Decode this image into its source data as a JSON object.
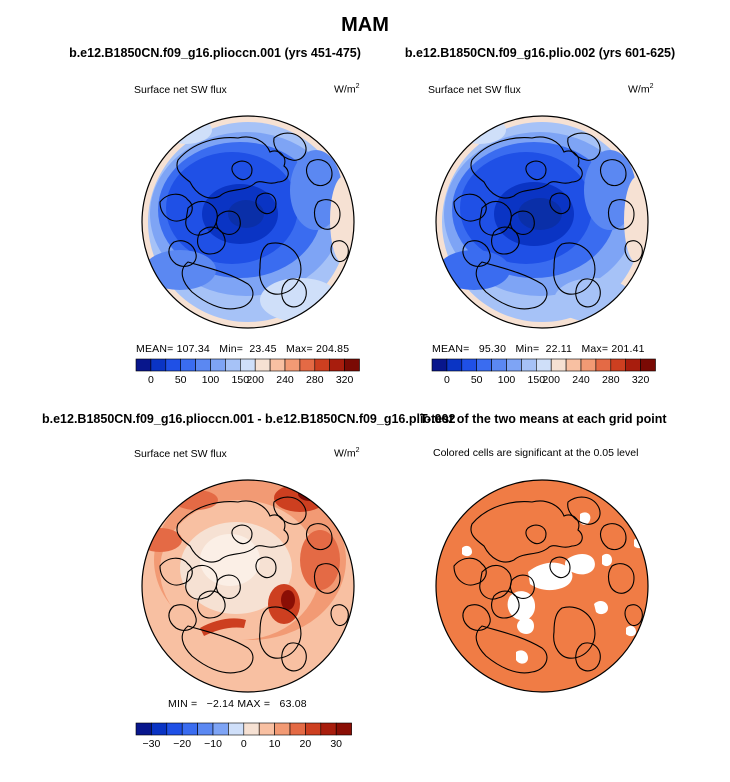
{
  "page": {
    "season_title": "MAM"
  },
  "panels": [
    {
      "title": "b.e12.B1850CN.f09_g16.plioccn.001 (yrs 451-475)",
      "variable": "Surface net SW flux",
      "units": "W/m",
      "units_power": "2",
      "stats": {
        "mean_label": "MEAN=",
        "mean": "107.34",
        "min_label": "Min=",
        "min": "23.45",
        "max_label": "Max=",
        "max": "204.85"
      }
    },
    {
      "title": "b.e12.B1850CN.f09_g16.plio.002 (yrs 601-625)",
      "variable": "Surface net SW flux",
      "units": "W/m",
      "units_power": "2",
      "stats": {
        "mean_label": "MEAN=",
        "mean": "95.30",
        "min_label": "Min=",
        "min": "22.11",
        "max_label": "Max=",
        "max": "201.41"
      }
    },
    {
      "title": "b.e12.B1850CN.f09_g16.plioccn.001 - b.e12.B1850CN.f09_g16.plio.002",
      "variable": "Surface net SW flux",
      "units": "W/m",
      "units_power": "2",
      "stats": {
        "min_label": "MIN =",
        "min": "−2.14",
        "max_label": "MAX =",
        "max": "63.08"
      }
    },
    {
      "title": "T-test of the two means at each grid point",
      "subtitle": "Colored cells are significant at the 0.05 level"
    }
  ],
  "chart_data": [
    {
      "type": "heatmap",
      "projection": "north-polar-stereographic",
      "title": "b.e12.B1850CN.f09_g16.plioccn.001 (yrs 451-475)",
      "variable": "Surface net SW flux",
      "units": "W/m2",
      "mean": 107.34,
      "min": 23.45,
      "max": 204.85,
      "colorbar": {
        "levels": [
          0,
          25,
          50,
          75,
          100,
          125,
          150,
          175,
          200,
          220,
          240,
          260,
          280,
          300,
          320
        ],
        "tick_labels": [
          "0",
          "50",
          "100",
          "150",
          "200",
          "240",
          "280",
          "320"
        ],
        "colors": [
          "#08168c",
          "#0a34c4",
          "#1f50e6",
          "#3a6cf0",
          "#5b88f2",
          "#7ea4f5",
          "#a6c2f7",
          "#cfdff9",
          "#f6e1d3",
          "#f8c0a2",
          "#f29a74",
          "#e46a45",
          "#cd3f20",
          "#a81d0d",
          "#7a0a04"
        ]
      }
    },
    {
      "type": "heatmap",
      "projection": "north-polar-stereographic",
      "title": "b.e12.B1850CN.f09_g16.plio.002 (yrs 601-625)",
      "variable": "Surface net SW flux",
      "units": "W/m2",
      "mean": 95.3,
      "min": 22.11,
      "max": 201.41,
      "colorbar": {
        "levels": [
          0,
          25,
          50,
          75,
          100,
          125,
          150,
          175,
          200,
          220,
          240,
          260,
          280,
          300,
          320
        ],
        "tick_labels": [
          "0",
          "50",
          "100",
          "150",
          "200",
          "240",
          "280",
          "320"
        ],
        "colors": [
          "#08168c",
          "#0a34c4",
          "#1f50e6",
          "#3a6cf0",
          "#5b88f2",
          "#7ea4f5",
          "#a6c2f7",
          "#cfdff9",
          "#f6e1d3",
          "#f8c0a2",
          "#f29a74",
          "#e46a45",
          "#cd3f20",
          "#a81d0d",
          "#7a0a04"
        ]
      }
    },
    {
      "type": "heatmap",
      "projection": "north-polar-stereographic",
      "title": "b.e12.B1850CN.f09_g16.plioccn.001 - b.e12.B1850CN.f09_g16.plio.002",
      "variable": "Surface net SW flux",
      "units": "W/m2",
      "min": -2.14,
      "max": 63.08,
      "colorbar": {
        "levels": [
          -35,
          -30,
          -25,
          -20,
          -15,
          -10,
          -5,
          0,
          5,
          10,
          15,
          20,
          25,
          30,
          35
        ],
        "tick_labels": [
          "−30",
          "−20",
          "−10",
          "0",
          "10",
          "20",
          "30"
        ],
        "colors": [
          "#08168c",
          "#0a34c4",
          "#1f50e6",
          "#3a6cf0",
          "#5b88f2",
          "#7ea4f5",
          "#cfdff9",
          "#f6e1d3",
          "#f8c0a2",
          "#f29a74",
          "#e46a45",
          "#cd3f20",
          "#a81d0d",
          "#8a0e05"
        ]
      }
    },
    {
      "type": "heatmap",
      "projection": "north-polar-stereographic",
      "title": "T-test of the two means at each grid point",
      "note": "Colored cells are significant at the 0.05 level",
      "significance_level": 0.05,
      "significant_color": "#f07c45"
    }
  ],
  "colors": {
    "land_outline": "#000000",
    "blue_deep": "#0a2fc4",
    "blue_mid": "#2a5ae6",
    "blue_light": "#8eb2f4",
    "blue_pale": "#cfdff9",
    "peach": "#f8dccb",
    "orange": "#f07c45",
    "red_dark": "#c0360f"
  }
}
